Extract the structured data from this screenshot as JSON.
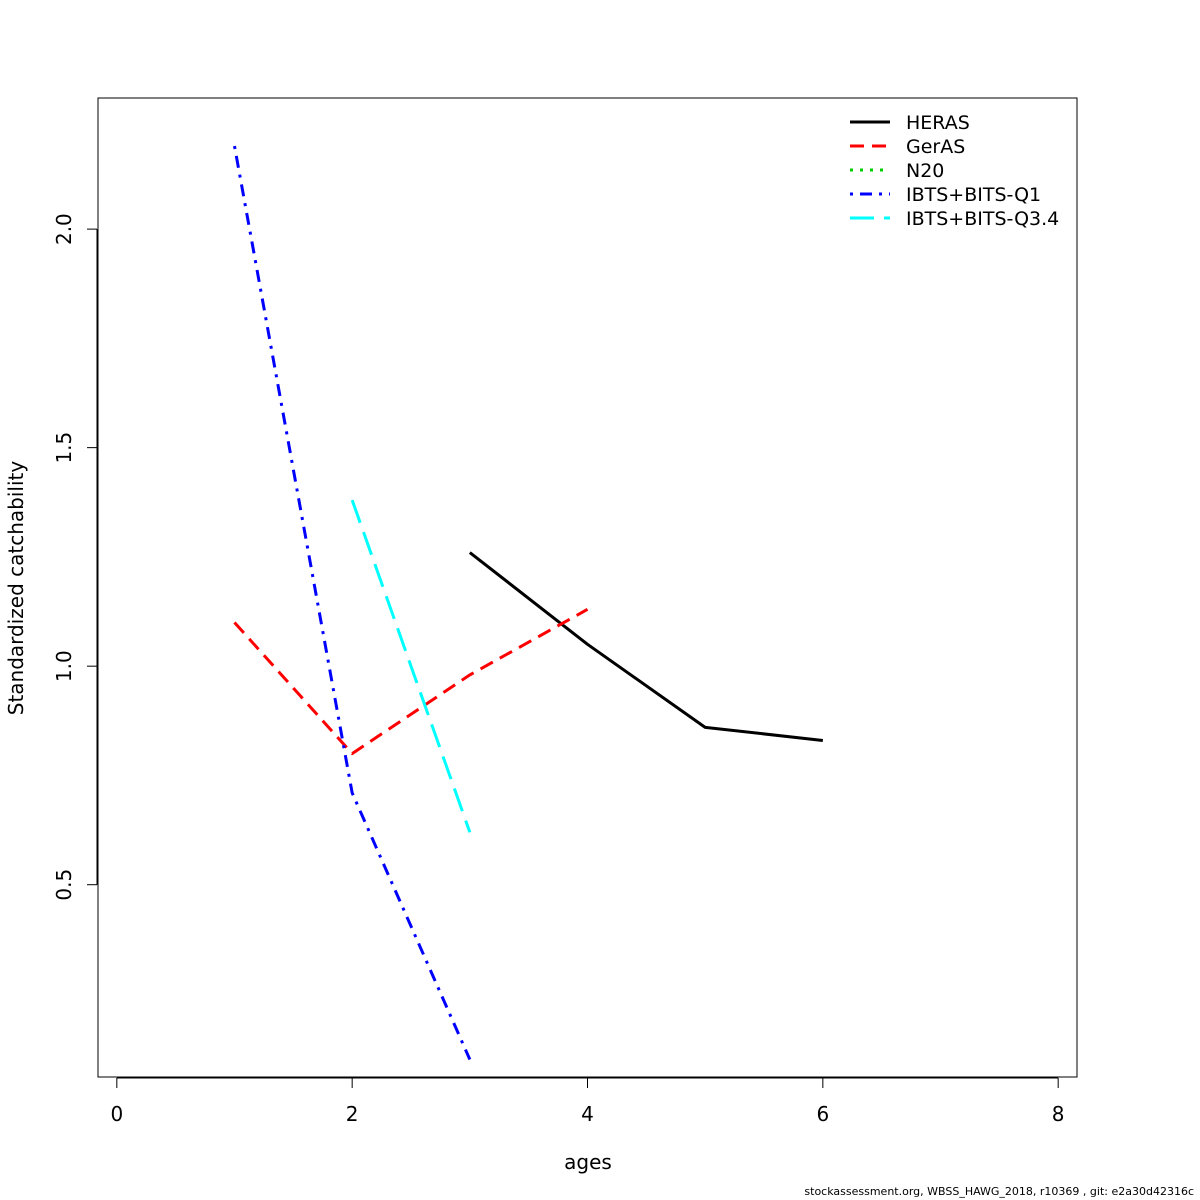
{
  "chart_data": {
    "type": "line",
    "xlabel": "ages",
    "ylabel": "Standardized catchability",
    "xlim": [
      -0.16,
      8.16
    ],
    "ylim": [
      0.06,
      2.3
    ],
    "xticks": [
      0,
      2,
      4,
      6,
      8
    ],
    "yticks": [
      0.5,
      1.0,
      1.5,
      2.0
    ],
    "xtick_labels": [
      "0",
      "2",
      "4",
      "6",
      "8"
    ],
    "ytick_labels": [
      "0.5",
      "1.0",
      "1.5",
      "2.0"
    ],
    "grid": false,
    "legend_position": "top-right",
    "series": [
      {
        "name": "HERAS",
        "color": "#000000",
        "dash": "solid",
        "x": [
          3,
          4,
          5,
          6
        ],
        "y": [
          1.26,
          1.05,
          0.86,
          0.83
        ]
      },
      {
        "name": "GerAS",
        "color": "#ff0000",
        "dash": "dashed",
        "x": [
          1,
          2,
          3,
          4
        ],
        "y": [
          1.1,
          0.8,
          0.98,
          1.13
        ]
      },
      {
        "name": "N20",
        "color": "#00cd00",
        "dash": "dotted",
        "x": [],
        "y": []
      },
      {
        "name": "IBTS+BITS-Q1",
        "color": "#0000ff",
        "dash": "dotdash",
        "x": [
          1,
          2,
          3
        ],
        "y": [
          2.19,
          0.71,
          0.1
        ]
      },
      {
        "name": "IBTS+BITS-Q3.4",
        "color": "#00ffff",
        "dash": "longdash",
        "x": [
          2,
          3
        ],
        "y": [
          1.38,
          0.62
        ]
      }
    ]
  },
  "footer": "stockassessment.org, WBSS_HAWG_2018, r10369 , git: e2a30d42316c"
}
